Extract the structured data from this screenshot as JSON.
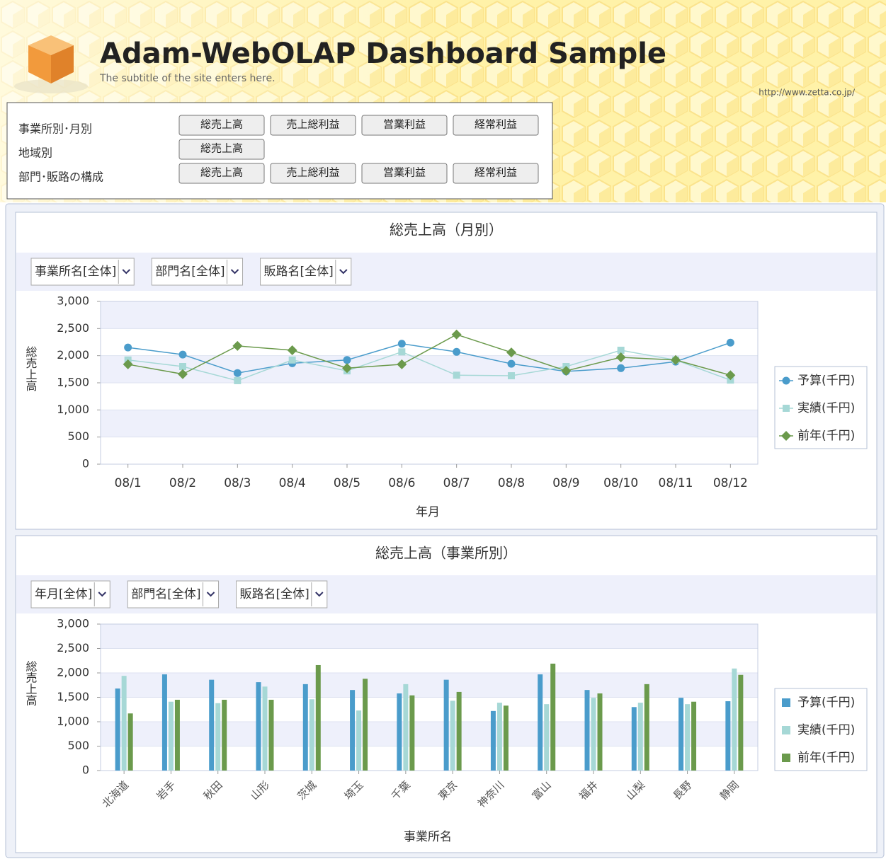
{
  "header": {
    "title": "Adam-WebOLAP Dashboard Sample",
    "subtitle": "The subtitle of the site enters here.",
    "url": "http://www.zetta.co.jp/"
  },
  "nav": {
    "rows": [
      {
        "label": "事業所別･月別",
        "buttons": [
          "総売上高",
          "売上総利益",
          "営業利益",
          "経常利益"
        ]
      },
      {
        "label": "地域別",
        "buttons": [
          "総売上高"
        ]
      },
      {
        "label": "部門･販路の構成",
        "buttons": [
          "総売上高",
          "売上総利益",
          "営業利益",
          "経常利益"
        ]
      }
    ]
  },
  "chart_data": [
    {
      "type": "line",
      "title": "総売上高（月別）",
      "filters": [
        "事業所名[全体]",
        "部門名[全体]",
        "販路名[全体]"
      ],
      "x_label": "年月",
      "y_label": "総売上高",
      "categories": [
        "08/1",
        "08/2",
        "08/3",
        "08/4",
        "08/5",
        "08/6",
        "08/7",
        "08/8",
        "08/9",
        "08/10",
        "08/11",
        "08/12"
      ],
      "series": [
        {
          "name": "予算(千円)",
          "color": "#4a9ccb",
          "marker": "circle",
          "values": [
            2150,
            2020,
            1680,
            1860,
            1920,
            2220,
            2070,
            1850,
            1710,
            1770,
            1890,
            2240
          ]
        },
        {
          "name": "実績(千円)",
          "color": "#a6d8d6",
          "marker": "square",
          "values": [
            1920,
            1800,
            1540,
            1920,
            1720,
            2070,
            1640,
            1630,
            1800,
            2100,
            1920,
            1550
          ]
        },
        {
          "name": "前年(千円)",
          "color": "#6b9a4c",
          "marker": "diamond",
          "values": [
            1840,
            1660,
            2180,
            2100,
            1770,
            1840,
            2390,
            2060,
            1720,
            1970,
            1920,
            1640
          ]
        }
      ],
      "ylim": [
        0,
        3000
      ],
      "yticks": [
        0,
        500,
        {
          "value": 1000,
          "label": "1,000"
        },
        {
          "value": 1500,
          "label": "1,500"
        },
        {
          "value": 2000,
          "label": "2,000"
        },
        {
          "value": 2500,
          "label": "2,500"
        },
        {
          "value": 3000,
          "label": "3,000"
        }
      ],
      "grid": true
    },
    {
      "type": "bar",
      "title": "総売上高（事業所別）",
      "filters": [
        "年月[全体]",
        "部門名[全体]",
        "販路名[全体]"
      ],
      "x_label": "事業所名",
      "y_label": "総売上高",
      "categories": [
        "北海道",
        "岩手",
        "秋田",
        "山形",
        "茨城",
        "埼玉",
        "千葉",
        "東京",
        "神奈川",
        "富山",
        "福井",
        "山梨",
        "長野",
        "静岡"
      ],
      "series": [
        {
          "name": "予算(千円)",
          "color": "#4a9ccb",
          "values": [
            1680,
            1970,
            1860,
            1810,
            1770,
            1650,
            1580,
            1860,
            1220,
            1970,
            1650,
            1300,
            1490,
            1420
          ]
        },
        {
          "name": "実績(千円)",
          "color": "#a6d8d6",
          "values": [
            1940,
            1410,
            1380,
            1720,
            1460,
            1230,
            1770,
            1430,
            1390,
            1360,
            1490,
            1390,
            1360,
            2090
          ]
        },
        {
          "name": "前年(千円)",
          "color": "#6b9a4c",
          "values": [
            1170,
            1450,
            1450,
            1450,
            2160,
            1880,
            1540,
            1610,
            1330,
            2190,
            1580,
            1770,
            1410,
            1960
          ]
        }
      ],
      "ylim": [
        0,
        3000
      ],
      "yticks": [
        0,
        500,
        {
          "value": 1000,
          "label": "1,000"
        },
        {
          "value": 1500,
          "label": "1,500"
        },
        {
          "value": 2000,
          "label": "2,000"
        },
        {
          "value": 2500,
          "label": "2,500"
        },
        {
          "value": 3000,
          "label": "3,000"
        }
      ],
      "grid": true
    }
  ]
}
